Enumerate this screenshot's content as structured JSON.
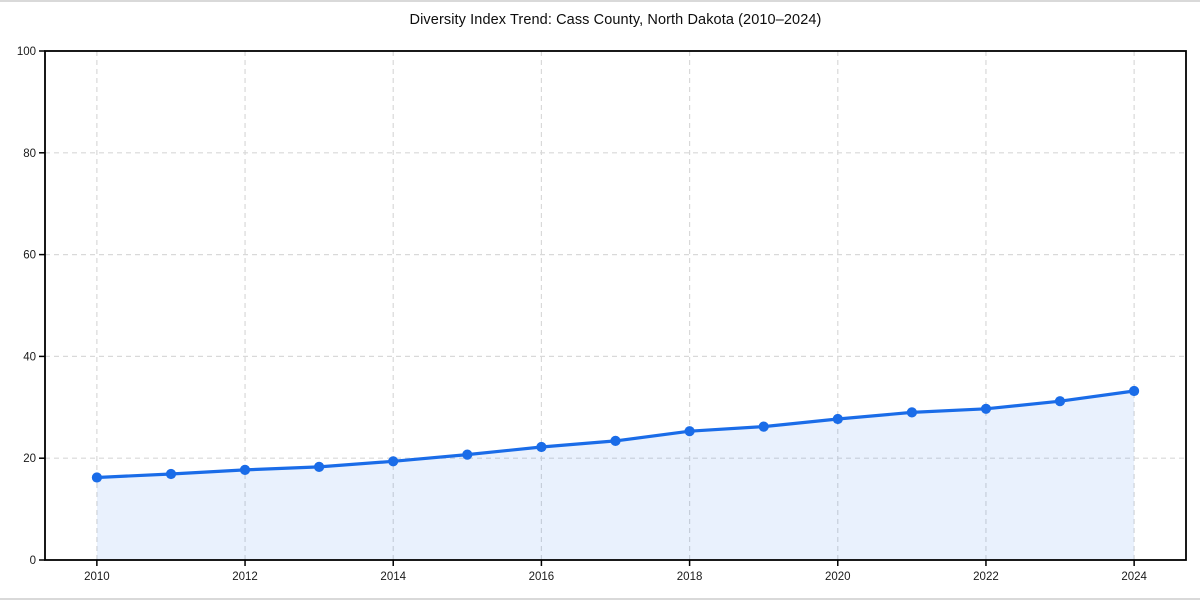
{
  "figure": {
    "title": "Diversity Index Trend: Cass County, North Dakota (2010–2024)"
  },
  "chart_data": {
    "type": "line",
    "title": "Diversity Index Trend: Cass County, North Dakota (2010–2024)",
    "x": [
      2010,
      2011,
      2012,
      2013,
      2014,
      2015,
      2016,
      2017,
      2018,
      2019,
      2020,
      2021,
      2022,
      2023,
      2024
    ],
    "series": [
      {
        "name": "Diversity Index",
        "values": [
          16.2,
          16.9,
          17.7,
          18.3,
          19.4,
          20.7,
          22.2,
          23.4,
          25.3,
          26.2,
          27.7,
          29.0,
          29.7,
          31.2,
          33.2
        ]
      }
    ],
    "xlabel": "",
    "ylabel": "",
    "xticks": [
      2010,
      2012,
      2014,
      2016,
      2018,
      2020,
      2022,
      2024
    ],
    "yticks": [
      0,
      20,
      40,
      60,
      80,
      100
    ],
    "xlim": [
      2009.3,
      2024.7
    ],
    "ylim": [
      0,
      100
    ],
    "grid": true,
    "grid_style": "dashed",
    "legend": "none",
    "marker": "circle",
    "area_fill": true,
    "colors": {
      "line": "#1a6ce8",
      "marker": "#1a6ce8",
      "fill": "rgba(26,108,232,0.095)",
      "grid": "#d9d9d9",
      "spine": "#000000",
      "tick_label": "#1a1a1a",
      "title": "#0d0d0d"
    }
  }
}
